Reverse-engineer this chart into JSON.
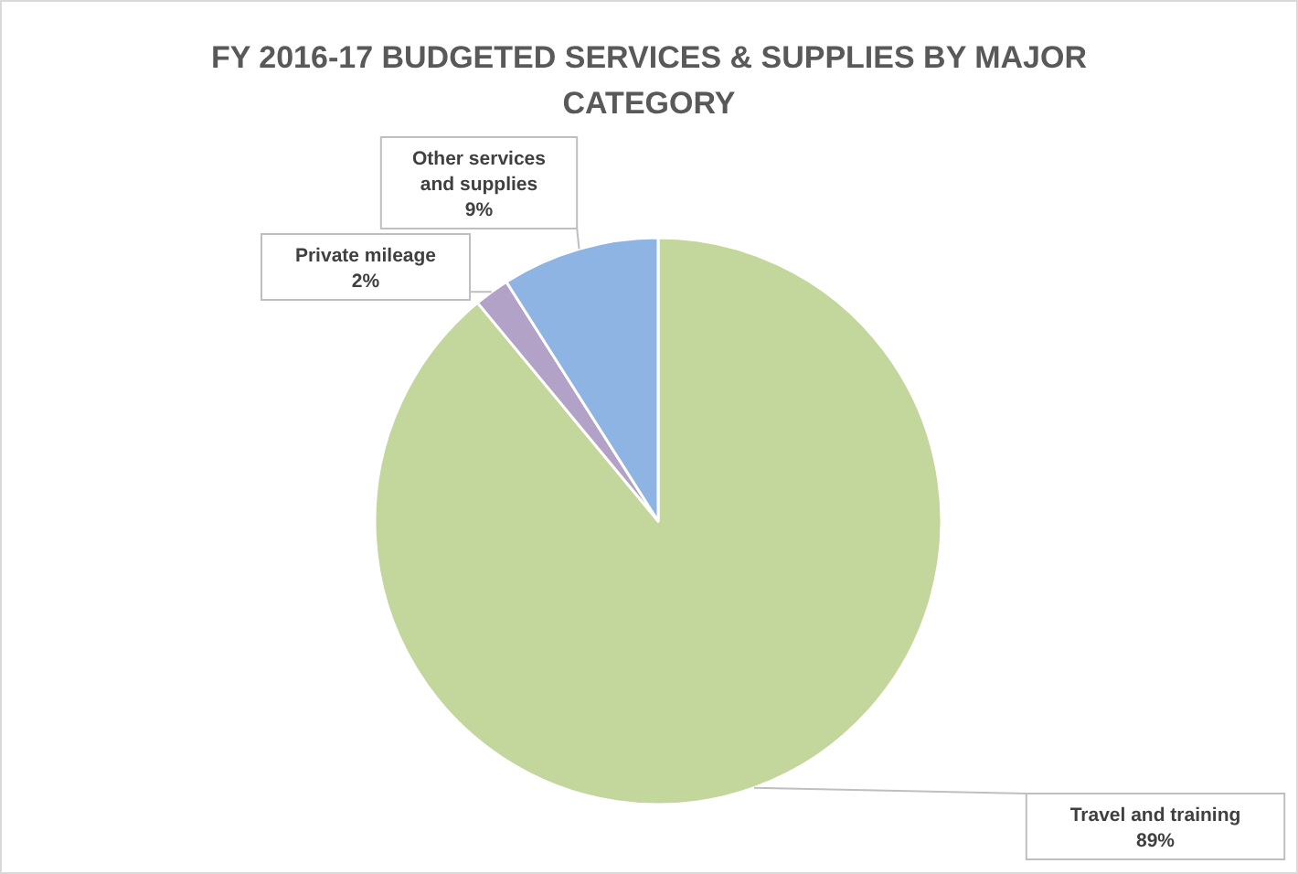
{
  "chart_data": {
    "type": "pie",
    "title": "FY 2016-17 BUDGETED SERVICES & SUPPLIES BY MAJOR CATEGORY",
    "categories": [
      "Travel and training",
      "Private mileage",
      "Other services and supplies"
    ],
    "values": [
      89,
      2,
      9
    ],
    "value_labels": [
      "89%",
      "2%",
      "9%"
    ],
    "colors": [
      "#c3d69b",
      "#b3a2c7",
      "#8eb4e3"
    ]
  }
}
